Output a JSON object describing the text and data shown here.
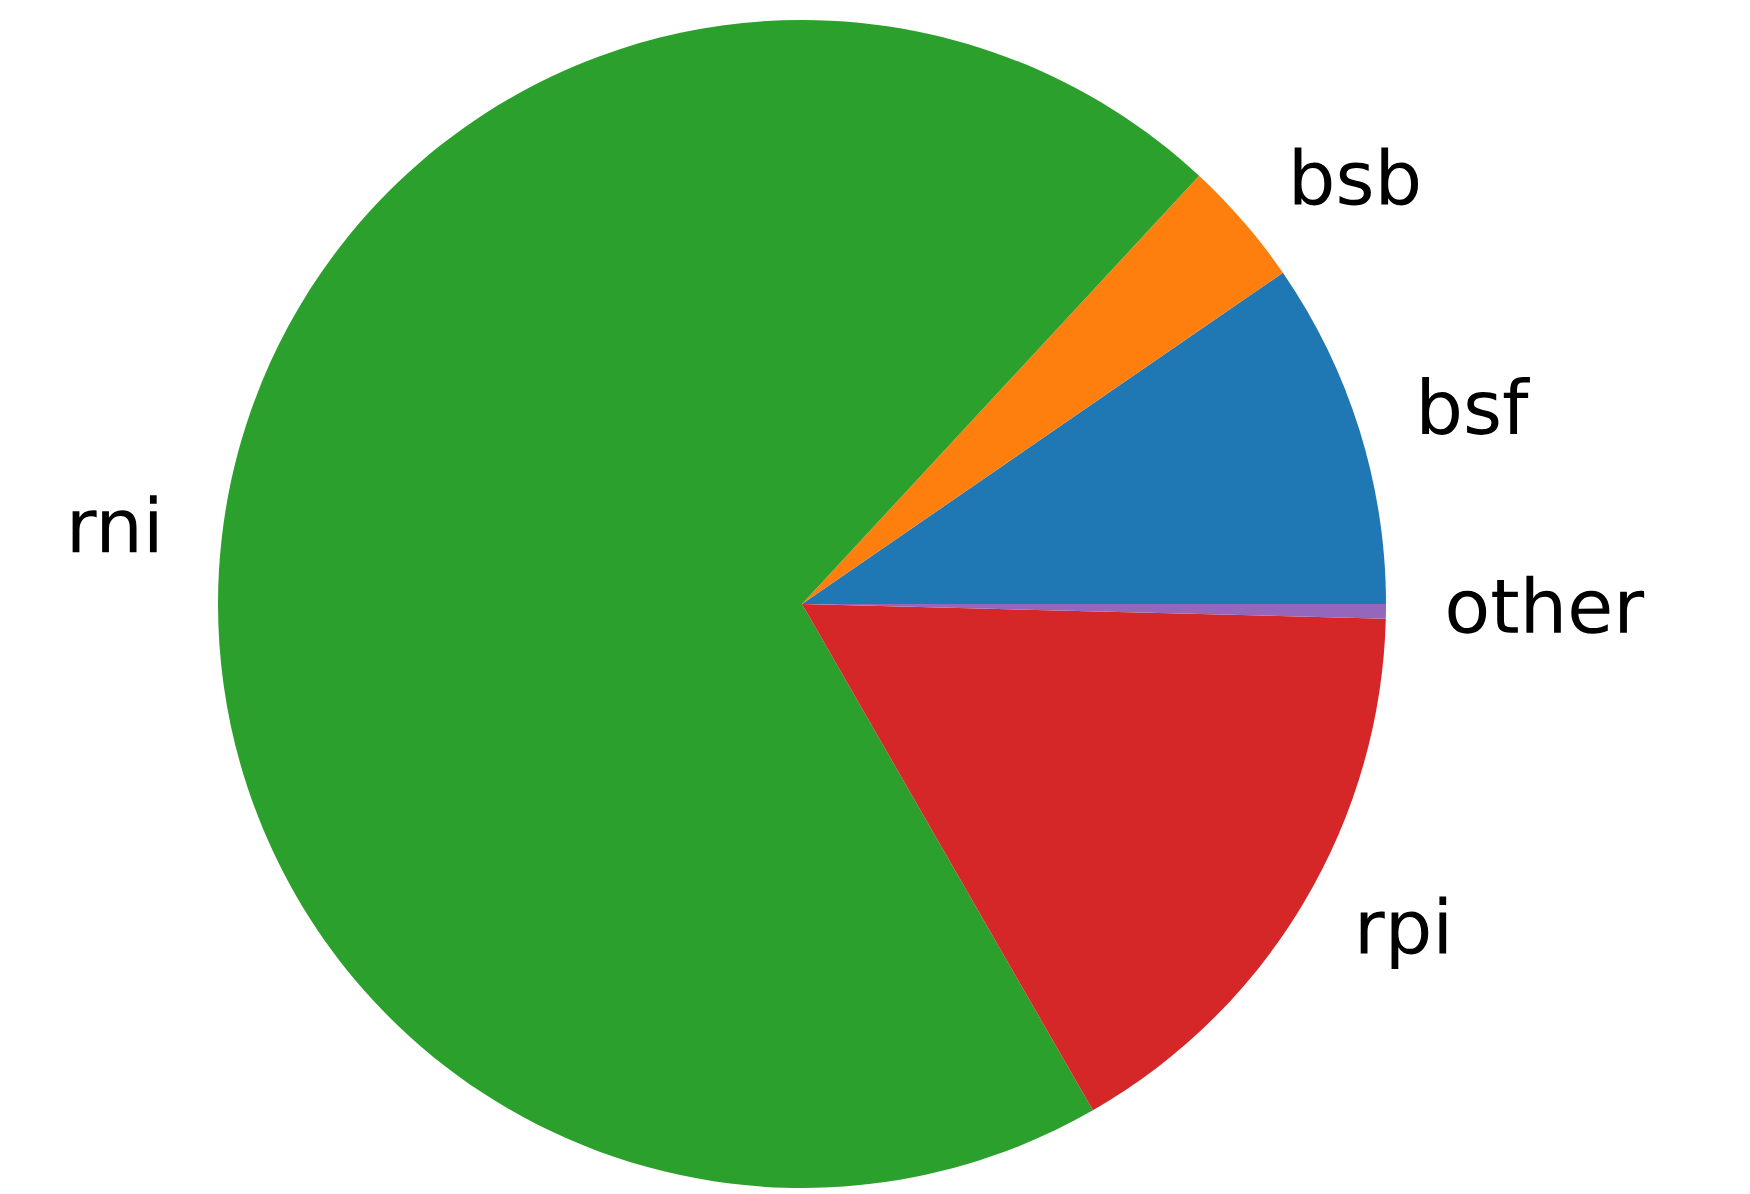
{
  "chart_data": {
    "type": "pie",
    "categories": [
      "bsf",
      "bsb",
      "rni",
      "rpi",
      "other"
    ],
    "values": [
      9.6,
      3.5,
      70.2,
      16.3,
      0.4
    ],
    "colors": [
      "#1f77b4",
      "#ff7f0e",
      "#2ca02c",
      "#d62728",
      "#9467bd"
    ]
  }
}
